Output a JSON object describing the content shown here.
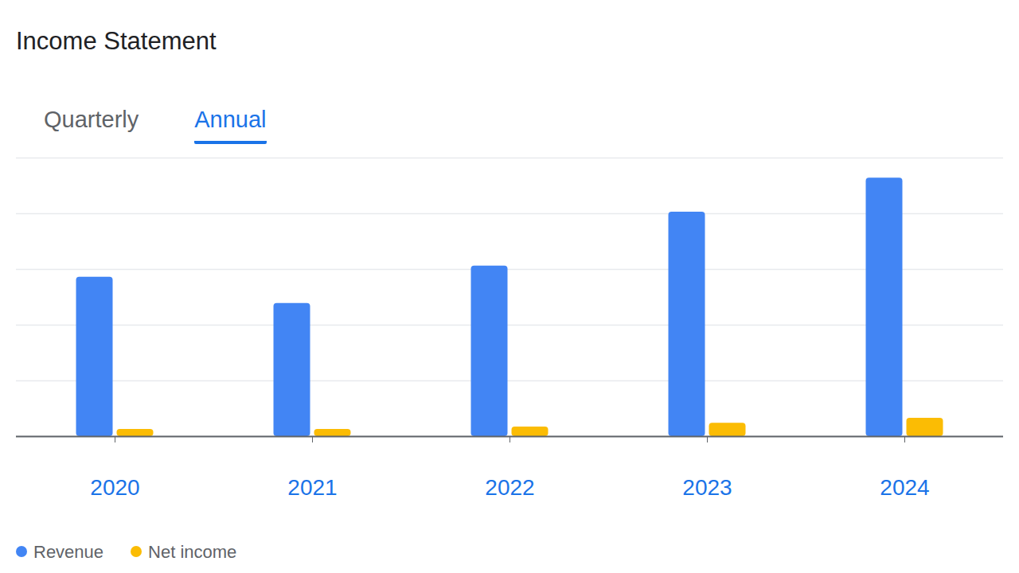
{
  "chart_data": {
    "type": "bar",
    "title": "Income Statement",
    "annotations": [
      "Quarterly",
      "Annual"
    ],
    "categories": [
      "2020",
      "2021",
      "2022",
      "2023",
      "2024"
    ],
    "series": [
      {
        "name": "Revenue",
        "color": "#4285f4",
        "values": [
          2.86,
          2.39,
          3.06,
          4.03,
          4.64
        ]
      },
      {
        "name": "Net income",
        "color": "#fbbc04",
        "values": [
          0.13,
          0.13,
          0.17,
          0.24,
          0.33
        ]
      }
    ],
    "ylim": [
      0,
      5
    ],
    "yticks": [
      0,
      1,
      2,
      3,
      4,
      5
    ],
    "grid": true,
    "tick_labels": "x",
    "legend": "bottom-left"
  }
}
